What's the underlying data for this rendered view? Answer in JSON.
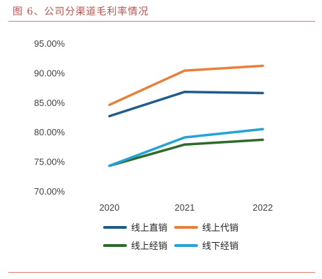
{
  "figure_title": "图 6、公司分渠道毛利率情况",
  "chart_data": {
    "type": "line",
    "title": "",
    "xlabel": "",
    "ylabel": "",
    "categories": [
      "2020",
      "2021",
      "2022"
    ],
    "ylim": [
      70,
      95
    ],
    "yticks": [
      "70.00%",
      "75.00%",
      "80.00%",
      "85.00%",
      "90.00%",
      "95.00%"
    ],
    "grid": false,
    "legend_position": "bottom",
    "series": [
      {
        "name": "线上直销",
        "color": "#1f5c8b",
        "values": [
          82.8,
          86.9,
          86.7
        ]
      },
      {
        "name": "线上代销",
        "color": "#e8803c",
        "values": [
          84.7,
          90.5,
          91.3
        ]
      },
      {
        "name": "线上经销",
        "color": "#2e6b2b",
        "values": [
          74.4,
          78.0,
          78.8
        ]
      },
      {
        "name": "线下经销",
        "color": "#24a3d9",
        "values": [
          74.4,
          79.2,
          80.6
        ]
      }
    ]
  }
}
